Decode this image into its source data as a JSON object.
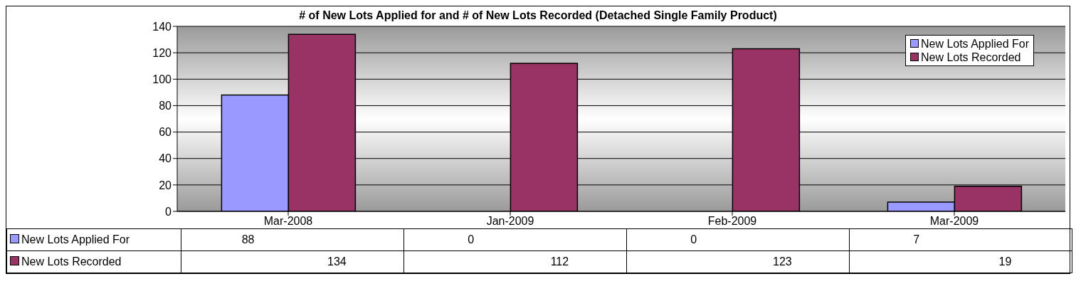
{
  "chart_data": {
    "type": "bar",
    "title": "# of New Lots Applied for and # of New Lots Recorded (Detached Single Family Product)",
    "categories": [
      "Mar-2008",
      "Jan-2009",
      "Feb-2009",
      "Mar-2009"
    ],
    "series": [
      {
        "name": "New Lots Applied For",
        "color": "#9999ff",
        "values": [
          88,
          0,
          0,
          7
        ]
      },
      {
        "name": "New Lots Recorded",
        "color": "#993366",
        "values": [
          134,
          112,
          123,
          19
        ]
      }
    ],
    "ylim": [
      0,
      140
    ],
    "yticks": [
      0,
      20,
      40,
      60,
      80,
      100,
      120,
      140
    ],
    "grid": "y",
    "legend": "top right",
    "data_labels": true
  }
}
